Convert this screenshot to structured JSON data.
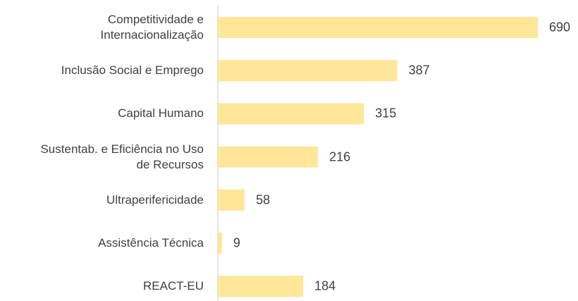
{
  "chart_data": {
    "type": "bar",
    "orientation": "horizontal",
    "categories": [
      "Competitividade e\nInternacionalização",
      "Inclusão Social e Emprego",
      "Capital Humano",
      "Sustentab. e Eficiência no Uso\nde Recursos",
      "Ultraperifericidade",
      "Assistência Técnica",
      "REACT-EU"
    ],
    "values": [
      690,
      387,
      315,
      216,
      58,
      9,
      184
    ],
    "color": "#FFE699"
  }
}
